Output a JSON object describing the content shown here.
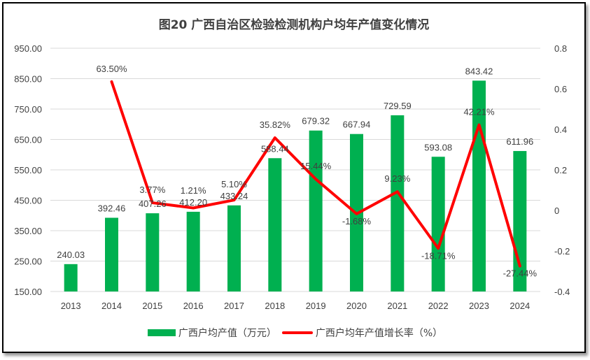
{
  "chart_data": {
    "type": "bar+line",
    "title": "图20 广西自治区检验检测机构户均年产值变化情况",
    "categories": [
      "2013",
      "2014",
      "2015",
      "2016",
      "2017",
      "2018",
      "2019",
      "2020",
      "2021",
      "2022",
      "2023",
      "2024"
    ],
    "series": [
      {
        "name": "广西户均产值（万元）",
        "type": "bar",
        "axis": "left",
        "color": "#00b050",
        "values": [
          240.03,
          392.46,
          407.26,
          412.2,
          433.24,
          588.44,
          679.32,
          667.94,
          729.59,
          593.08,
          843.42,
          611.96
        ],
        "labels": [
          "240.03",
          "392.46",
          "407.26",
          "412.20",
          "433.24",
          "588.44",
          "679.32",
          "667.94",
          "729.59",
          "593.08",
          "843.42",
          "611.96"
        ]
      },
      {
        "name": "广西户均年产值增长率（%）",
        "type": "line",
        "axis": "right",
        "color": "#ff0000",
        "values": [
          null,
          0.635,
          0.0377,
          0.0121,
          0.051,
          0.3582,
          0.1544,
          -0.0168,
          0.0923,
          -0.1871,
          0.4221,
          -0.2744
        ],
        "labels": [
          "",
          "63.50%",
          "3.77%",
          "1.21%",
          "5.10%",
          "35.82%",
          "15.44%",
          "-1.68%",
          "9.23%",
          "-18.71%",
          "42.21%",
          "-27.44%"
        ]
      }
    ],
    "y_left": {
      "range": [
        150,
        950
      ],
      "ticks": [
        "150.00",
        "250.00",
        "350.00",
        "450.00",
        "550.00",
        "650.00",
        "750.00",
        "850.00",
        "950.00"
      ]
    },
    "y_right": {
      "range": [
        -0.4,
        0.8
      ],
      "ticks": [
        "-0.4",
        "-0.2",
        "0",
        "0.2",
        "0.4",
        "0.6",
        "0.8"
      ]
    },
    "grid": true,
    "legend": "bottom"
  }
}
